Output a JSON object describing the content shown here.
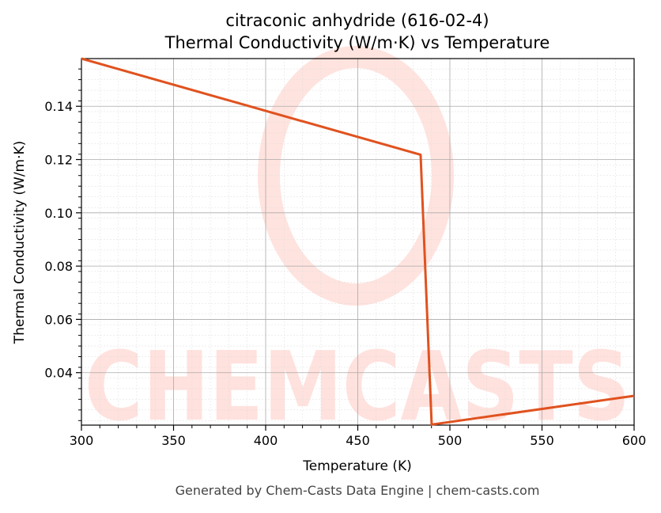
{
  "chart_data": {
    "type": "line",
    "title": "citraconic anhydride (616-02-4)",
    "subtitle": "Thermal Conductivity (W/m·K) vs Temperature",
    "xlabel": "Temperature (K)",
    "ylabel": "Thermal Conductivity (W/m·K)",
    "xlim": [
      300,
      600
    ],
    "ylim": [
      0.0203,
      0.1579
    ],
    "xticks": [
      300,
      350,
      400,
      450,
      500,
      550,
      600
    ],
    "xtick_labels": [
      "300",
      "350",
      "400",
      "450",
      "500",
      "550",
      "600"
    ],
    "yticks": [
      0.04,
      0.06,
      0.08,
      0.1,
      0.12,
      0.14
    ],
    "ytick_labels": [
      "0.04",
      "0.06",
      "0.08",
      "0.10",
      "0.12",
      "0.14"
    ],
    "grid": true,
    "series": [
      {
        "color": "#e0521f",
        "x": [
          300,
          484.1,
          490.1,
          600
        ],
        "y": [
          0.1579,
          0.1218,
          0.0205,
          0.0313
        ]
      }
    ]
  },
  "watermark": "CHEMCASTS",
  "footer": "Generated by Chem-Casts Data Engine | chem-casts.com"
}
